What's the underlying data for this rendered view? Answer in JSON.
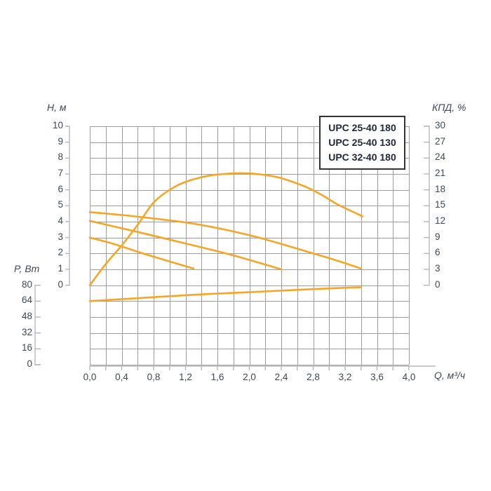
{
  "colors": {
    "curve": "#F6A525",
    "grid": "#9C9C9C",
    "axis_line": "#B3B8BF",
    "text": "#3D4858",
    "legend_border": "#333333",
    "legend_text": "#20293A",
    "background": "#FFFFFF"
  },
  "chart_data": {
    "type": "line",
    "title": "",
    "legend": [
      "UPC 25-40 180",
      "UPC 25-40 130",
      "UPC 32-40 180"
    ],
    "legend_position": "top-right-inside",
    "grid": "on",
    "axes": {
      "head": {
        "title": "H, м",
        "side": "left",
        "ticks": [
          10,
          9,
          8,
          7,
          6,
          5,
          4,
          3,
          2,
          1,
          0
        ],
        "range": [
          0,
          10
        ]
      },
      "efficiency": {
        "title": "КПД, %",
        "side": "right",
        "ticks": [
          30,
          27,
          24,
          21,
          18,
          15,
          12,
          9,
          6,
          3,
          0
        ],
        "range": [
          0,
          30
        ]
      },
      "power": {
        "title": "P, Вт",
        "side": "left-lower",
        "ticks": [
          80,
          64,
          48,
          32,
          16,
          0
        ],
        "range": [
          0,
          80
        ]
      },
      "flow": {
        "title": "Q, м³/ч",
        "side": "bottom",
        "tick_labels": [
          "0,0",
          "0,4",
          "0,8",
          "1,2",
          "1,6",
          "2,0",
          "2,4",
          "2,8",
          "3,2",
          "3,6",
          "4,0"
        ],
        "tick_values": [
          0.0,
          0.4,
          0.8,
          1.2,
          1.6,
          2.0,
          2.4,
          2.8,
          3.2,
          3.6,
          4.0
        ],
        "range": [
          0,
          4.0
        ],
        "minor_step": 0.2
      }
    },
    "series": [
      {
        "name": "head-curve-long",
        "axis": "head",
        "units": "м vs м³/ч",
        "points": [
          [
            0,
            4.6
          ],
          [
            0.4,
            4.42
          ],
          [
            0.8,
            4.2
          ],
          [
            1.2,
            3.95
          ],
          [
            1.6,
            3.6
          ],
          [
            2.0,
            3.15
          ],
          [
            2.4,
            2.6
          ],
          [
            2.8,
            2.0
          ],
          [
            3.1,
            1.55
          ],
          [
            3.4,
            1.05
          ]
        ]
      },
      {
        "name": "head-curve-mid",
        "axis": "head",
        "units": "м vs м³/ч",
        "points": [
          [
            0,
            4.05
          ],
          [
            0.6,
            3.35
          ],
          [
            1.2,
            2.63
          ],
          [
            1.8,
            1.88
          ],
          [
            2.4,
            1.0
          ]
        ]
      },
      {
        "name": "head-curve-short",
        "axis": "head",
        "units": "м vs м³/ч",
        "points": [
          [
            0,
            3.0
          ],
          [
            0.3,
            2.6
          ],
          [
            0.7,
            1.95
          ],
          [
            1.0,
            1.5
          ],
          [
            1.3,
            1.05
          ]
        ]
      },
      {
        "name": "efficiency-curve",
        "axis": "efficiency",
        "units": "% vs м³/ч",
        "points": [
          [
            0,
            0
          ],
          [
            0.2,
            4.0
          ],
          [
            0.4,
            7.5
          ],
          [
            0.6,
            11.4
          ],
          [
            0.8,
            15.6
          ],
          [
            1.0,
            18.0
          ],
          [
            1.2,
            19.5
          ],
          [
            1.5,
            20.7
          ],
          [
            1.8,
            21.1
          ],
          [
            2.0,
            21.1
          ],
          [
            2.2,
            20.8
          ],
          [
            2.4,
            20.2
          ],
          [
            2.7,
            18.6
          ],
          [
            2.9,
            17.1
          ],
          [
            3.1,
            15.3
          ],
          [
            3.25,
            14.2
          ],
          [
            3.42,
            13.0
          ]
        ]
      },
      {
        "name": "power-curve",
        "axis": "power",
        "units": "Вт vs м³/ч",
        "points": [
          [
            0,
            64
          ],
          [
            0.5,
            66.5
          ],
          [
            1.0,
            69
          ],
          [
            1.5,
            71.2
          ],
          [
            2.0,
            73
          ],
          [
            2.5,
            75
          ],
          [
            3.0,
            76.8
          ],
          [
            3.4,
            78
          ]
        ]
      }
    ]
  }
}
